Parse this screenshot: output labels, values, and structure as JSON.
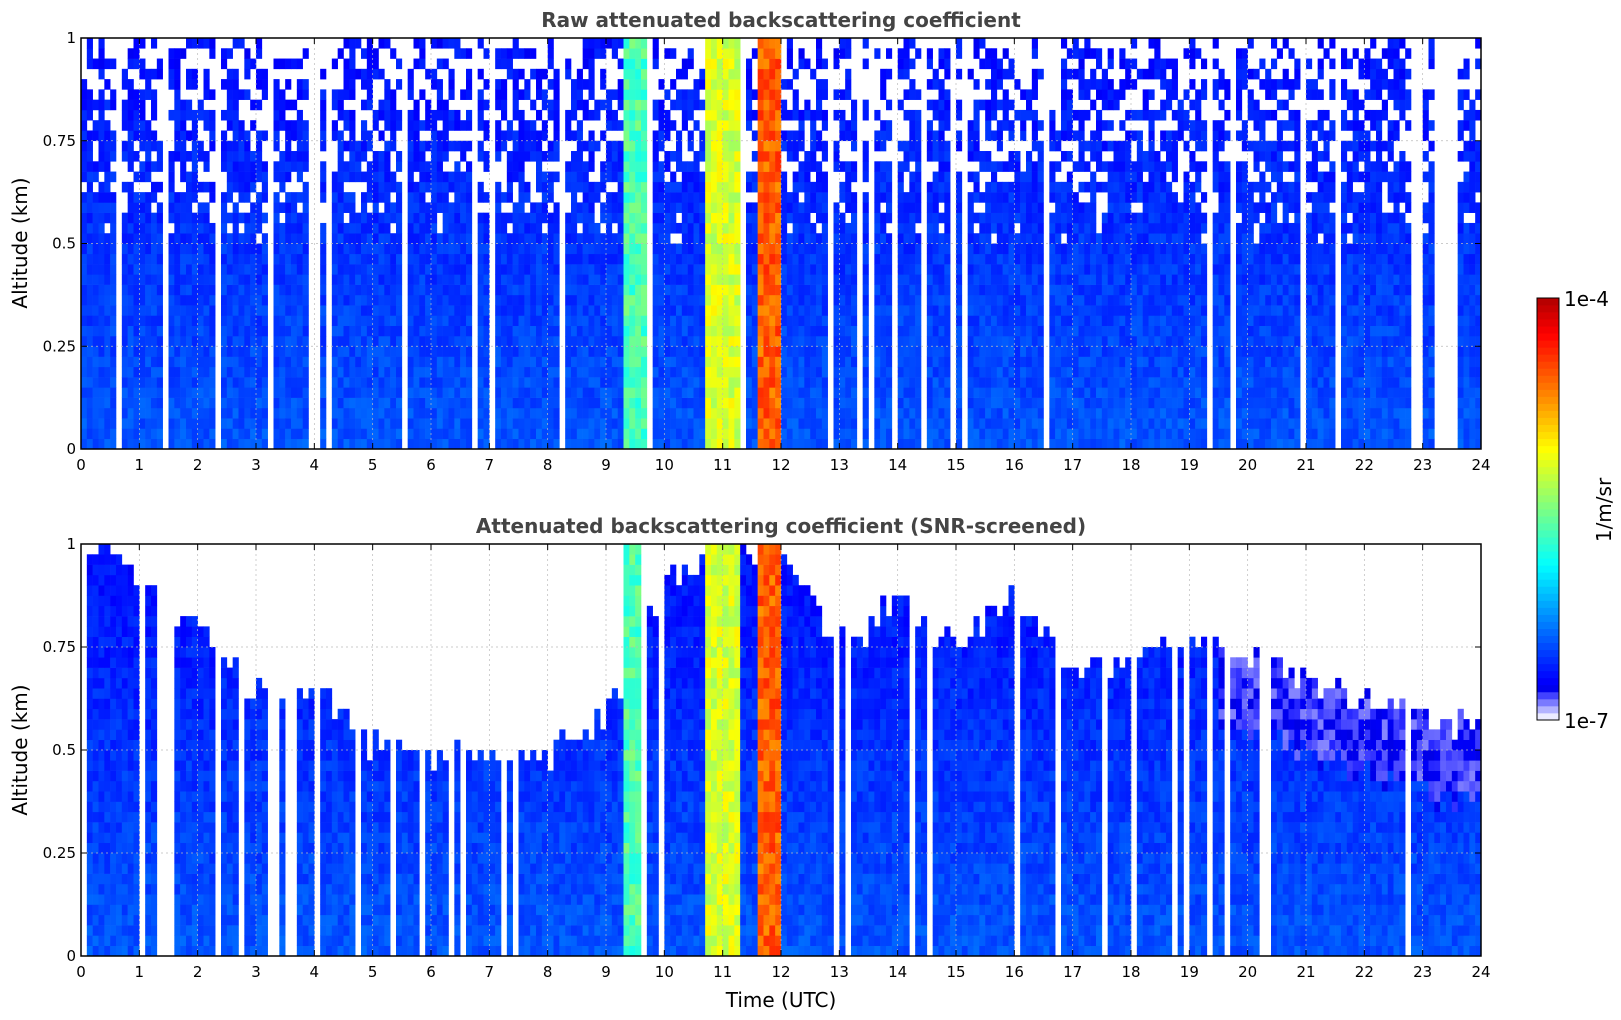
{
  "chart_data": [
    {
      "type": "heatmap",
      "title": "Raw attenuated backscattering coefficient",
      "xlabel": "",
      "ylabel": "Altitude (km)",
      "xlim": [
        0,
        24
      ],
      "ylim": [
        0,
        1
      ],
      "x_ticks": [
        "0",
        "1",
        "2",
        "3",
        "4",
        "5",
        "6",
        "7",
        "8",
        "9",
        "10",
        "11",
        "12",
        "13",
        "14",
        "15",
        "16",
        "17",
        "18",
        "19",
        "20",
        "21",
        "22",
        "23",
        "24"
      ],
      "y_ticks": [
        "0",
        "0.25",
        "0.5",
        "0.75",
        "1"
      ],
      "grid": true,
      "colorscale": "jet-like, log scale",
      "description_bands": [
        {
          "x_range": [
            9.3,
            9.7
          ],
          "level": "green-cyan"
        },
        {
          "x_range": [
            10.7,
            11.3
          ],
          "level": "yellow-green"
        },
        {
          "x_range": [
            11.6,
            12.0
          ],
          "level": "red-orange"
        }
      ]
    },
    {
      "type": "heatmap",
      "title": "Attenuated backscattering coefficient (SNR-screened)",
      "xlabel": "Time (UTC)",
      "ylabel": "Altitude (km)",
      "xlim": [
        0,
        24
      ],
      "ylim": [
        0,
        1
      ],
      "x_ticks": [
        "0",
        "1",
        "2",
        "3",
        "4",
        "5",
        "6",
        "7",
        "8",
        "9",
        "10",
        "11",
        "12",
        "13",
        "14",
        "15",
        "16",
        "17",
        "18",
        "19",
        "20",
        "21",
        "22",
        "23",
        "24"
      ],
      "y_ticks": [
        "0",
        "0.25",
        "0.5",
        "0.75",
        "1"
      ],
      "grid": true,
      "screen_top_km": [
        [
          0,
          1.0
        ],
        [
          1,
          0.93
        ],
        [
          2,
          0.78
        ],
        [
          3,
          0.65
        ],
        [
          4,
          0.66
        ],
        [
          5,
          0.5
        ],
        [
          6,
          0.48
        ],
        [
          7,
          0.5
        ],
        [
          8,
          0.48
        ],
        [
          9,
          0.58
        ],
        [
          10,
          0.9
        ],
        [
          11,
          1.0
        ],
        [
          12,
          1.0
        ],
        [
          13,
          0.75
        ],
        [
          14,
          0.85
        ],
        [
          15,
          0.75
        ],
        [
          16,
          0.88
        ],
        [
          17,
          0.68
        ],
        [
          18,
          0.72
        ],
        [
          19,
          0.8
        ],
        [
          20,
          0.72
        ],
        [
          21,
          0.68
        ],
        [
          22,
          0.62
        ],
        [
          23,
          0.58
        ],
        [
          24,
          0.55
        ]
      ]
    }
  ],
  "colorbar": {
    "max_label": "1e-4",
    "min_label": "1e-7",
    "unit_label": "1/m/sr",
    "scale": "log"
  }
}
